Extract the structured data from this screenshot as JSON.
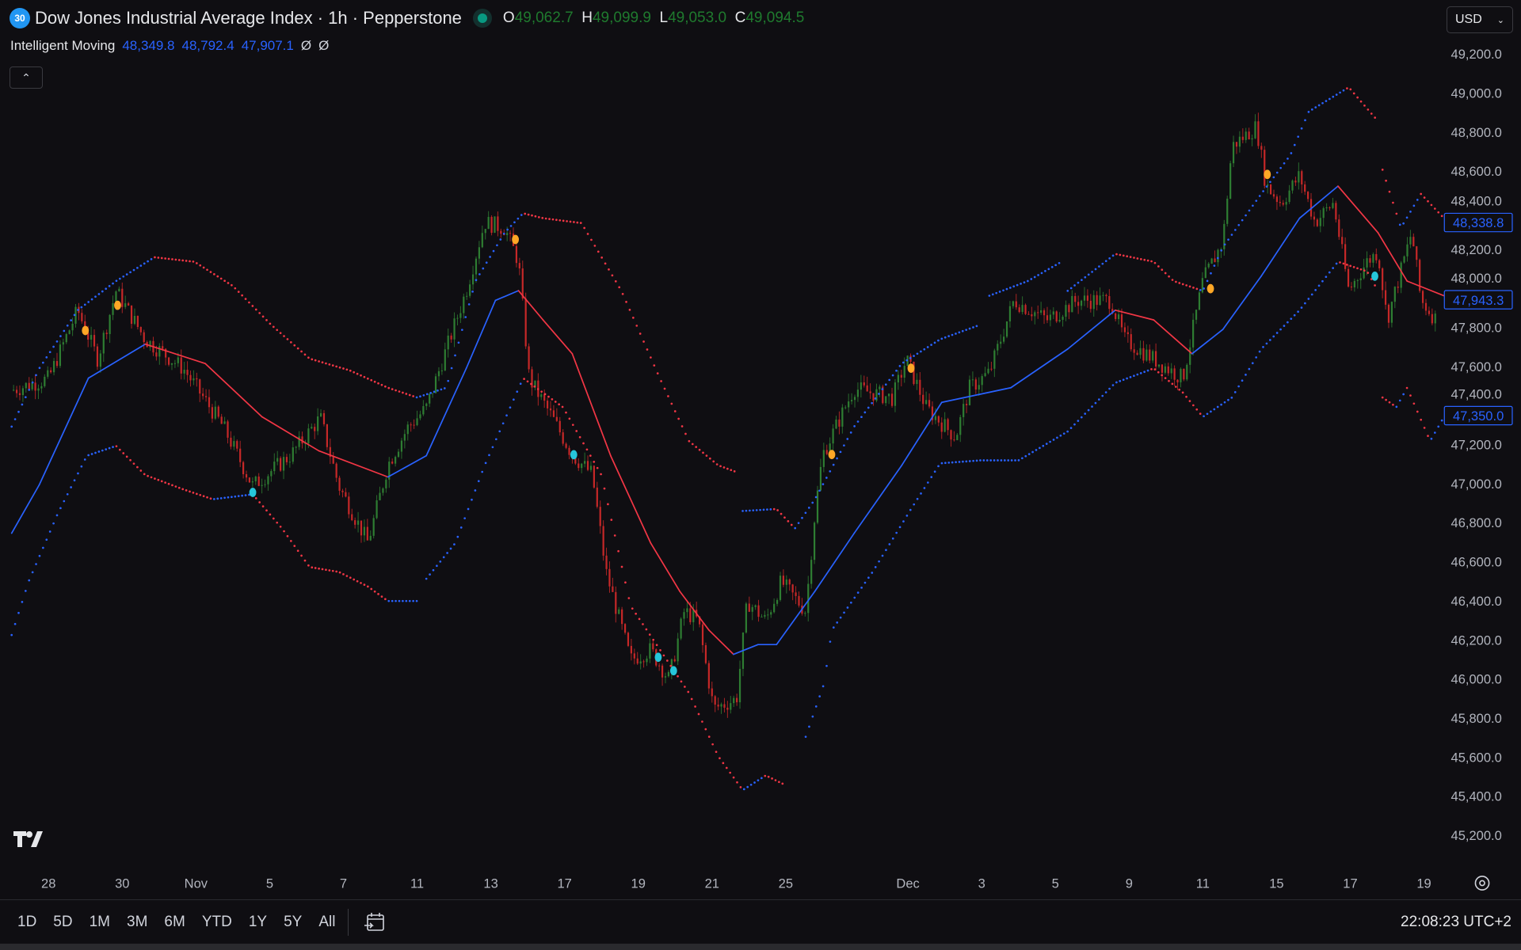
{
  "header": {
    "symbol_badge": "30",
    "title": "Dow Jones Industrial Average Index · 1h · Pepperstone",
    "ohlc": {
      "o_label": "O",
      "o": "49,062.7",
      "h_label": "H",
      "h": "49,099.9",
      "l_label": "L",
      "l": "49,053.0",
      "c_label": "C",
      "c": "49,094.5"
    },
    "status_color": "#089981"
  },
  "indicator": {
    "name": "Intelligent Moving",
    "values": [
      "48,349.8",
      "48,792.4",
      "47,907.1"
    ],
    "na": [
      "Ø",
      "Ø"
    ]
  },
  "currency": "USD",
  "price_labels": [
    "48,338.8",
    "47,943.3",
    "47,350.0"
  ],
  "bottom": {
    "ranges": [
      "1D",
      "5D",
      "1M",
      "3M",
      "6M",
      "YTD",
      "1Y",
      "5Y",
      "All"
    ],
    "clock": "22:08:23 UTC+2"
  },
  "chart_data": {
    "type": "candlestick",
    "colors": {
      "up": "#2e7d32",
      "down": "#c62828",
      "rising": "#2962ff",
      "falling": "#f23645",
      "sell_marker": "#ffa726",
      "buy_marker": "#26c6da",
      "label_box": "#2962ff"
    },
    "y_ticks": [
      "49,200.0",
      "49,000.0",
      "48,800.0",
      "48,600.0",
      "48,400.0",
      "48,200.0",
      "48,000.0",
      "47,800.0",
      "47,600.0",
      "47,400.0",
      "47,200.0",
      "47,000.0",
      "46,800.0",
      "46,600.0",
      "46,400.0",
      "46,200.0",
      "46,000.0",
      "45,800.0",
      "45,600.0",
      "45,400.0",
      "45,200.0"
    ],
    "x_ticks": [
      {
        "t": "Oct 28 00",
        "label": "28"
      },
      {
        "t": "Oct 30 00",
        "label": "30"
      },
      {
        "t": "Nov 3 00",
        "label": "Nov"
      },
      {
        "t": "Nov 5 00",
        "label": "5"
      },
      {
        "t": "Nov 7 00",
        "label": "7"
      },
      {
        "t": "Nov 11 00",
        "label": "11"
      },
      {
        "t": "Nov 13 00",
        "label": "13"
      },
      {
        "t": "Nov 17 00",
        "label": "17"
      },
      {
        "t": "Nov 19 00",
        "label": "19"
      },
      {
        "t": "Nov 21 00",
        "label": "21"
      },
      {
        "t": "Nov 25 00",
        "label": "25"
      },
      {
        "t": "Dec 1 00",
        "label": "Dec"
      },
      {
        "t": "Dec 3 00",
        "label": "3"
      },
      {
        "t": "Dec 5 00",
        "label": "5"
      },
      {
        "t": "Dec 9 00",
        "label": "9"
      },
      {
        "t": "Dec 11 00",
        "label": "11"
      },
      {
        "t": "Dec 15 00",
        "label": "15"
      },
      {
        "t": "Dec 17 00",
        "label": "17"
      },
      {
        "t": "Dec 19 00",
        "label": "19"
      }
    ],
    "ylim": [
      45100,
      49300
    ],
    "price_path": [
      [
        "Oct 27 00",
        47480
      ],
      [
        "Oct 28 00",
        47540
      ],
      [
        "Oct 28 19",
        47890
      ],
      [
        "Oct 29 08",
        47640
      ],
      [
        "Oct 29 20",
        47990
      ],
      [
        "Oct 30 15",
        47740
      ],
      [
        "Oct 31 16",
        47590
      ],
      [
        "Nov 3 18",
        47290
      ],
      [
        "Nov 4 13",
        46990
      ],
      [
        "Nov 5 14",
        47150
      ],
      [
        "Nov 6 09",
        47340
      ],
      [
        "Nov 6 21",
        46990
      ],
      [
        "Nov 7 16",
        46700
      ],
      [
        "Nov 10 05",
        47100
      ],
      [
        "Nov 10 18",
        47290
      ],
      [
        "Nov 11 06",
        47390
      ],
      [
        "Nov 11 19",
        47690
      ],
      [
        "Nov 12 08",
        47990
      ],
      [
        "Nov 12 20",
        48340
      ],
      [
        "Nov 13 09",
        48310
      ],
      [
        "Nov 13 18",
        48140
      ],
      [
        "Nov 14 01",
        47540
      ],
      [
        "Nov 14 16",
        47340
      ],
      [
        "Nov 17 05",
        47150
      ],
      [
        "Nov 17 18",
        47050
      ],
      [
        "Nov 18 03",
        46550
      ],
      [
        "Nov 18 19",
        46100
      ],
      [
        "Nov 19 08",
        46150
      ],
      [
        "Nov 19 20",
        46000
      ],
      [
        "Nov 20 06",
        46350
      ],
      [
        "Nov 20 15",
        46300
      ],
      [
        "Nov 21 01",
        45850
      ],
      [
        "Nov 21 16",
        45900
      ],
      [
        "Nov 21 23",
        46400
      ],
      [
        "Nov 24 11",
        46300
      ],
      [
        "Nov 24 21",
        46500
      ],
      [
        "Nov 25 13",
        46350
      ],
      [
        "Nov 25 19",
        46850
      ],
      [
        "Nov 26 00",
        47150
      ],
      [
        "Nov 26 13",
        47490
      ],
      [
        "Nov 28 14",
        47440
      ],
      [
        "Nov 28 23",
        47640
      ],
      [
        "Dec 1 12",
        47390
      ],
      [
        "Dec 2 07",
        47240
      ],
      [
        "Dec 2 16",
        47490
      ],
      [
        "Dec 3 05",
        47570
      ],
      [
        "Dec 3 21",
        47940
      ],
      [
        "Dec 4 19",
        47840
      ],
      [
        "Dec 5 14",
        47940
      ],
      [
        "Dec 8 12",
        47940
      ],
      [
        "Dec 8 21",
        47740
      ],
      [
        "Dec 9 16",
        47640
      ],
      [
        "Dec 10 11",
        47540
      ],
      [
        "Dec 11 00",
        48040
      ],
      [
        "Dec 11 13",
        48240
      ],
      [
        "Dec 11 19",
        48730
      ],
      [
        "Dec 12 11",
        48830
      ],
      [
        "Dec 12 17",
        48530
      ],
      [
        "Dec 15 03",
        48440
      ],
      [
        "Dec 15 15",
        48580
      ],
      [
        "Dec 16 01",
        48340
      ],
      [
        "Dec 16 13",
        48440
      ],
      [
        "Dec 16 23",
        47990
      ],
      [
        "Dec 17 11",
        48140
      ],
      [
        "Dec 17 18",
        48190
      ],
      [
        "Dec 18 00",
        47840
      ],
      [
        "Dec 18 16",
        48290
      ],
      [
        "Dec 18 22",
        47940
      ],
      [
        "Dec 19 08",
        47840
      ]
    ],
    "moving_average": [
      [
        "Oct 27 00",
        46748
      ],
      [
        "Oct 27 18",
        46996
      ],
      [
        "Oct 29 02",
        47542
      ],
      [
        "Oct 30 15",
        47716
      ],
      [
        "Nov 3 06",
        47617
      ],
      [
        "Nov 4 19",
        47344
      ],
      [
        "Nov 6 08",
        47170
      ],
      [
        "Nov 10 05",
        47036
      ],
      [
        "Nov 11 06",
        47145
      ],
      [
        "Nov 12 08",
        47592
      ],
      [
        "Nov 13 03",
        47940
      ],
      [
        "Nov 13 18",
        47990
      ],
      [
        "Nov 14 10",
        47840
      ],
      [
        "Nov 17 05",
        47667
      ],
      [
        "Nov 18 06",
        47145
      ],
      [
        "Nov 19 08",
        46699
      ],
      [
        "Nov 20 03",
        46451
      ],
      [
        "Nov 20 22",
        46252
      ],
      [
        "Nov 21 14",
        46128
      ],
      [
        "Nov 24 06",
        46178
      ],
      [
        "Nov 24 18",
        46178
      ],
      [
        "Nov 25 19",
        46451
      ],
      [
        "Nov 26 13",
        46748
      ],
      [
        "Nov 28 20",
        47096
      ],
      [
        "Dec 1 22",
        47418
      ],
      [
        "Dec 3 19",
        47493
      ],
      [
        "Dec 5 08",
        47691
      ],
      [
        "Dec 8 15",
        47890
      ],
      [
        "Dec 9 16",
        47840
      ],
      [
        "Dec 10 17",
        47667
      ],
      [
        "Dec 11 13",
        47791
      ],
      [
        "Dec 12 14",
        48064
      ],
      [
        "Dec 15 15",
        48361
      ],
      [
        "Dec 16 16",
        48525
      ],
      [
        "Dec 17 18",
        48287
      ],
      [
        "Dec 18 13",
        48039
      ],
      [
        "Dec 19 13",
        47964
      ]
    ],
    "upper_band": [
      [
        [
          "Oct 27 00",
          47294
        ],
        [
          "Oct 27 18",
          47592
        ],
        [
          "Oct 28 19",
          47890
        ],
        [
          "Oct 29 20",
          48039
        ],
        [
          "Oct 30 21",
          48161
        ],
        [
          "Oct 31 23",
          48138
        ],
        [
          "Nov 4 00",
          48014
        ],
        [
          "Nov 5 01",
          47815
        ],
        [
          "Nov 6 02",
          47642
        ],
        [
          "Nov 7 04",
          47582
        ],
        [
          "Nov 10 05",
          47493
        ],
        [
          "Nov 11 00",
          47443
        ],
        [
          "Nov 11 19",
          47493
        ],
        [
          "Nov 12 14",
          48039
        ],
        [
          "Nov 13 09",
          48287
        ],
        [
          "Nov 13 21",
          48386
        ],
        [
          "Nov 14 10",
          48361
        ],
        [
          "Nov 17 11",
          48336
        ],
        [
          "Nov 18 13",
          47989
        ],
        [
          "Nov 19 14",
          47542
        ],
        [
          "Nov 20 09",
          47220
        ],
        [
          "Nov 21 04",
          47096
        ],
        [
          "Nov 21 16",
          47061
        ]
      ],
      [
        [
          "Nov 21 20",
          46862
        ],
        [
          "Nov 24 18",
          46872
        ],
        [
          "Nov 25 06",
          46773
        ],
        [
          "Nov 25 19",
          46922
        ],
        [
          "Nov 26 13",
          47294
        ],
        [
          "Nov 28 20",
          47617
        ],
        [
          "Dec 1 21",
          47741
        ],
        [
          "Dec 2 23",
          47815
        ]
      ],
      [
        [
          "Dec 3 05",
          47964
        ],
        [
          "Dec 4 06",
          48039
        ],
        [
          "Dec 5 04",
          48138
        ]
      ],
      [
        [
          "Dec 5 08",
          47989
        ],
        [
          "Dec 8 15",
          48178
        ],
        [
          "Dec 9 16",
          48138
        ],
        [
          "Dec 10 05",
          48039
        ],
        [
          "Dec 11 00",
          47989
        ],
        [
          "Dec 11 13",
          48212
        ],
        [
          "Dec 12 14",
          48485
        ],
        [
          "Dec 15 09",
          48684
        ],
        [
          "Dec 15 21",
          48907
        ],
        [
          "Dec 16 23",
          49031
        ],
        [
          "Dec 17 18",
          48858
        ]
      ],
      [
        [
          "Dec 17 21",
          48609
        ],
        [
          "Dec 18 09",
          48312
        ],
        [
          "Dec 18 22",
          48485
        ],
        [
          "Dec 19 13",
          48361
        ]
      ]
    ],
    "lower_band": [
      [
        [
          "Oct 27 00",
          46227
        ],
        [
          "Oct 27 11",
          46500
        ],
        [
          "Oct 28 06",
          46848
        ],
        [
          "Oct 29 01",
          47145
        ],
        [
          "Oct 29 20",
          47195
        ],
        [
          "Oct 30 15",
          47046
        ],
        [
          "Oct 31 16",
          46972
        ],
        [
          "Nov 3 11",
          46922
        ],
        [
          "Nov 4 13",
          46947
        ],
        [
          "Nov 5 08",
          46773
        ],
        [
          "Nov 6 02",
          46575
        ],
        [
          "Nov 6 21",
          46550
        ],
        [
          "Nov 7 16",
          46475
        ],
        [
          "Nov 10 05",
          46401
        ],
        [
          "Nov 11 00",
          46401
        ]
      ],
      [
        [
          "Nov 11 06",
          46515
        ],
        [
          "Nov 12 01",
          46699
        ],
        [
          "Nov 12 20",
          47096
        ],
        [
          "Nov 13 21",
          47542
        ],
        [
          "Nov 14 23",
          47393
        ],
        [
          "Nov 18 00",
          47046
        ],
        [
          "Nov 18 19",
          46376
        ],
        [
          "Nov 19 14",
          46153
        ],
        [
          "Nov 20 09",
          45930
        ],
        [
          "Nov 21 04",
          45607
        ],
        [
          "Nov 21 20",
          45433
        ],
        [
          "Nov 24 11",
          45508
        ],
        [
          "Nov 25 00",
          45458
        ]
      ],
      [
        [
          "Nov 25 13",
          45706
        ],
        [
          "Nov 26 01",
          45979
        ],
        [
          "Nov 26 06",
          46252
        ],
        [
          "Nov 28 01",
          46550
        ],
        [
          "Dec 1 02",
          46872
        ],
        [
          "Dec 1 21",
          47106
        ],
        [
          "Dec 2 23",
          47121
        ],
        [
          "Dec 4 00",
          47121
        ],
        [
          "Dec 5 08",
          47269
        ],
        [
          "Dec 8 15",
          47518
        ],
        [
          "Dec 9 16",
          47592
        ],
        [
          "Dec 10 11",
          47468
        ],
        [
          "Dec 11 00",
          47344
        ],
        [
          "Dec 11 19",
          47443
        ],
        [
          "Dec 12 14",
          47691
        ],
        [
          "Dec 15 15",
          47890
        ],
        [
          "Dec 16 16",
          48138
        ],
        [
          "Dec 17 11",
          48088
        ],
        [
          "Dec 17 18",
          47989
        ]
      ],
      [
        [
          "Dec 17 21",
          47443
        ],
        [
          "Dec 18 06",
          47394
        ],
        [
          "Dec 18 13",
          47493
        ],
        [
          "Dec 19 04",
          47220
        ],
        [
          "Dec 19 13",
          47344
        ]
      ]
    ],
    "sell_markers": [
      [
        "Oct 29 00",
        47786
      ],
      [
        "Oct 29 21",
        47915
      ],
      [
        "Nov 13 16",
        48252
      ],
      [
        "Nov 26 06",
        47151
      ],
      [
        "Dec 1 02",
        47593
      ],
      [
        "Dec 11 05",
        48000
      ],
      [
        "Dec 12 18",
        48585
      ]
    ],
    "buy_markers": [
      [
        "Nov 4 13",
        46957
      ],
      [
        "Nov 17 06",
        47150
      ],
      [
        "Nov 19 13",
        46113
      ],
      [
        "Nov 19 23",
        46044
      ],
      [
        "Dec 17 16",
        48064
      ]
    ],
    "price_label_values": [
      48338.8,
      47943.3,
      47350.0
    ]
  }
}
